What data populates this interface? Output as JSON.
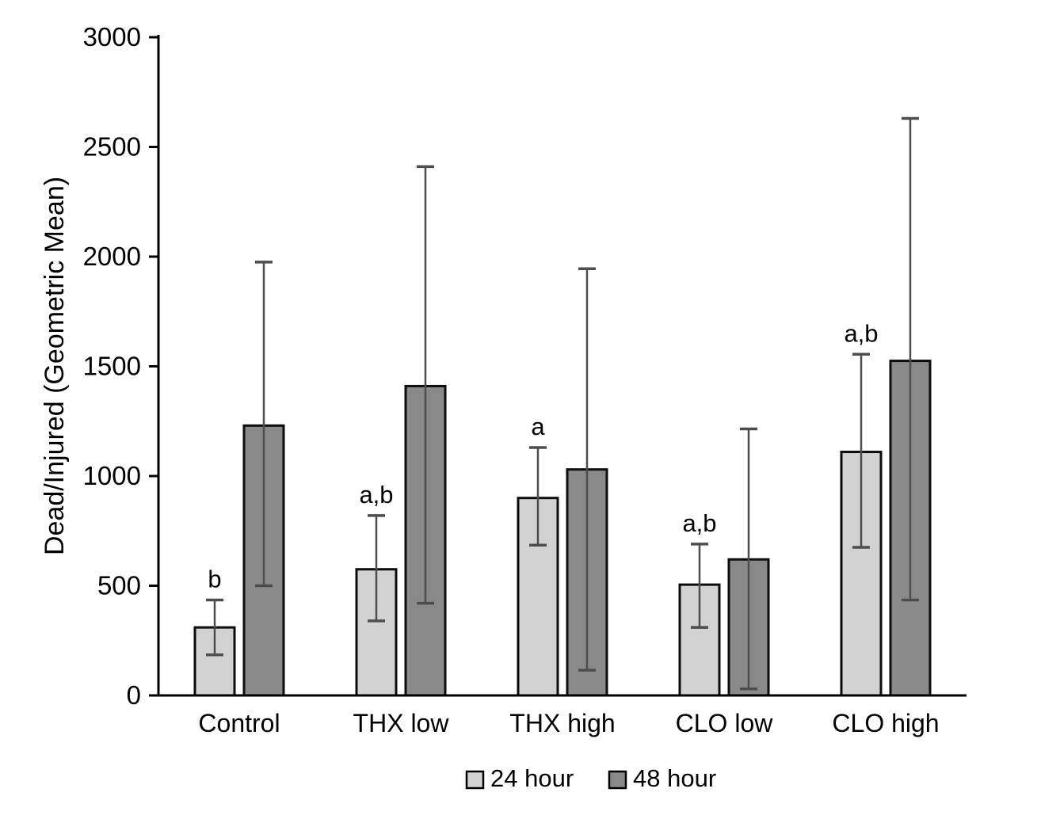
{
  "figure": {
    "background": "#ffffff"
  },
  "chart_data": {
    "type": "bar",
    "title": "",
    "ylabel": "Dead/Injured (Geometric Mean)",
    "xlabel": "",
    "ylim": [
      0,
      3000
    ],
    "yticks": [
      0,
      500,
      1000,
      1500,
      2000,
      2500,
      3000
    ],
    "categories": [
      "Control",
      "THX low",
      "THX high",
      "CLO low",
      "CLO high"
    ],
    "series": [
      {
        "name": "24 hour",
        "color": "#d2d2d2",
        "edge_color": "#0d0d0d",
        "values": [
          310,
          575,
          900,
          505,
          1110
        ],
        "error_low": [
          185,
          340,
          685,
          310,
          675
        ],
        "error_high": [
          435,
          820,
          1130,
          690,
          1555
        ]
      },
      {
        "name": "48 hour",
        "color": "#898989",
        "edge_color": "#0d0d0d",
        "values": [
          1230,
          1410,
          1030,
          620,
          1525
        ],
        "error_low": [
          500,
          420,
          115,
          30,
          435
        ],
        "error_high": [
          1975,
          2410,
          1945,
          1215,
          2630
        ]
      }
    ],
    "annotations": [
      {
        "category": "Control",
        "series": "24 hour",
        "text": "b"
      },
      {
        "category": "THX low",
        "series": "24 hour",
        "text": "a,b"
      },
      {
        "category": "THX high",
        "series": "24 hour",
        "text": "a"
      },
      {
        "category": "CLO low",
        "series": "24 hour",
        "text": "a,b"
      },
      {
        "category": "CLO high",
        "series": "24 hour",
        "text": "a,b"
      }
    ],
    "legend": {
      "position": "bottom",
      "entries": [
        "24 hour",
        "48 hour"
      ]
    },
    "grid": false,
    "axis_color": "#000000",
    "error_bar_color": "#4d4d4d"
  }
}
